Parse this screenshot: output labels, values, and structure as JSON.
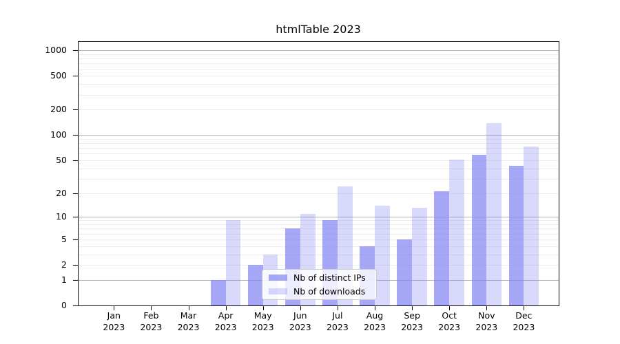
{
  "chart_data": {
    "type": "bar",
    "title": "htmlTable 2023",
    "year_label": "2023",
    "categories": [
      "Jan",
      "Feb",
      "Mar",
      "Apr",
      "May",
      "Jun",
      "Jul",
      "Aug",
      "Sep",
      "Oct",
      "Nov",
      "Dec"
    ],
    "series": [
      {
        "name": "Nb of distinct IPs",
        "color": "rgba(130,130,245,0.7)",
        "values": [
          0,
          0,
          0,
          1,
          2,
          7,
          9,
          4,
          5,
          21,
          58,
          43
        ]
      },
      {
        "name": "Nb of downloads",
        "color": "rgba(130,130,245,0.3)",
        "values": [
          0,
          0,
          0,
          9,
          3,
          11,
          24,
          14,
          13,
          51,
          139,
          73
        ]
      }
    ],
    "xlabel": "",
    "ylabel": "",
    "y_ticks": [
      0,
      1,
      2,
      5,
      10,
      20,
      50,
      100,
      200,
      500,
      1000
    ],
    "y_scale": "symlog",
    "ylim": [
      0,
      1280
    ],
    "grid": "on",
    "major_grid_color": "#b0b0b0",
    "minor_grid_color": "#ececec",
    "axis_color": "#000000",
    "legend_position": "inside-bottom-center"
  }
}
